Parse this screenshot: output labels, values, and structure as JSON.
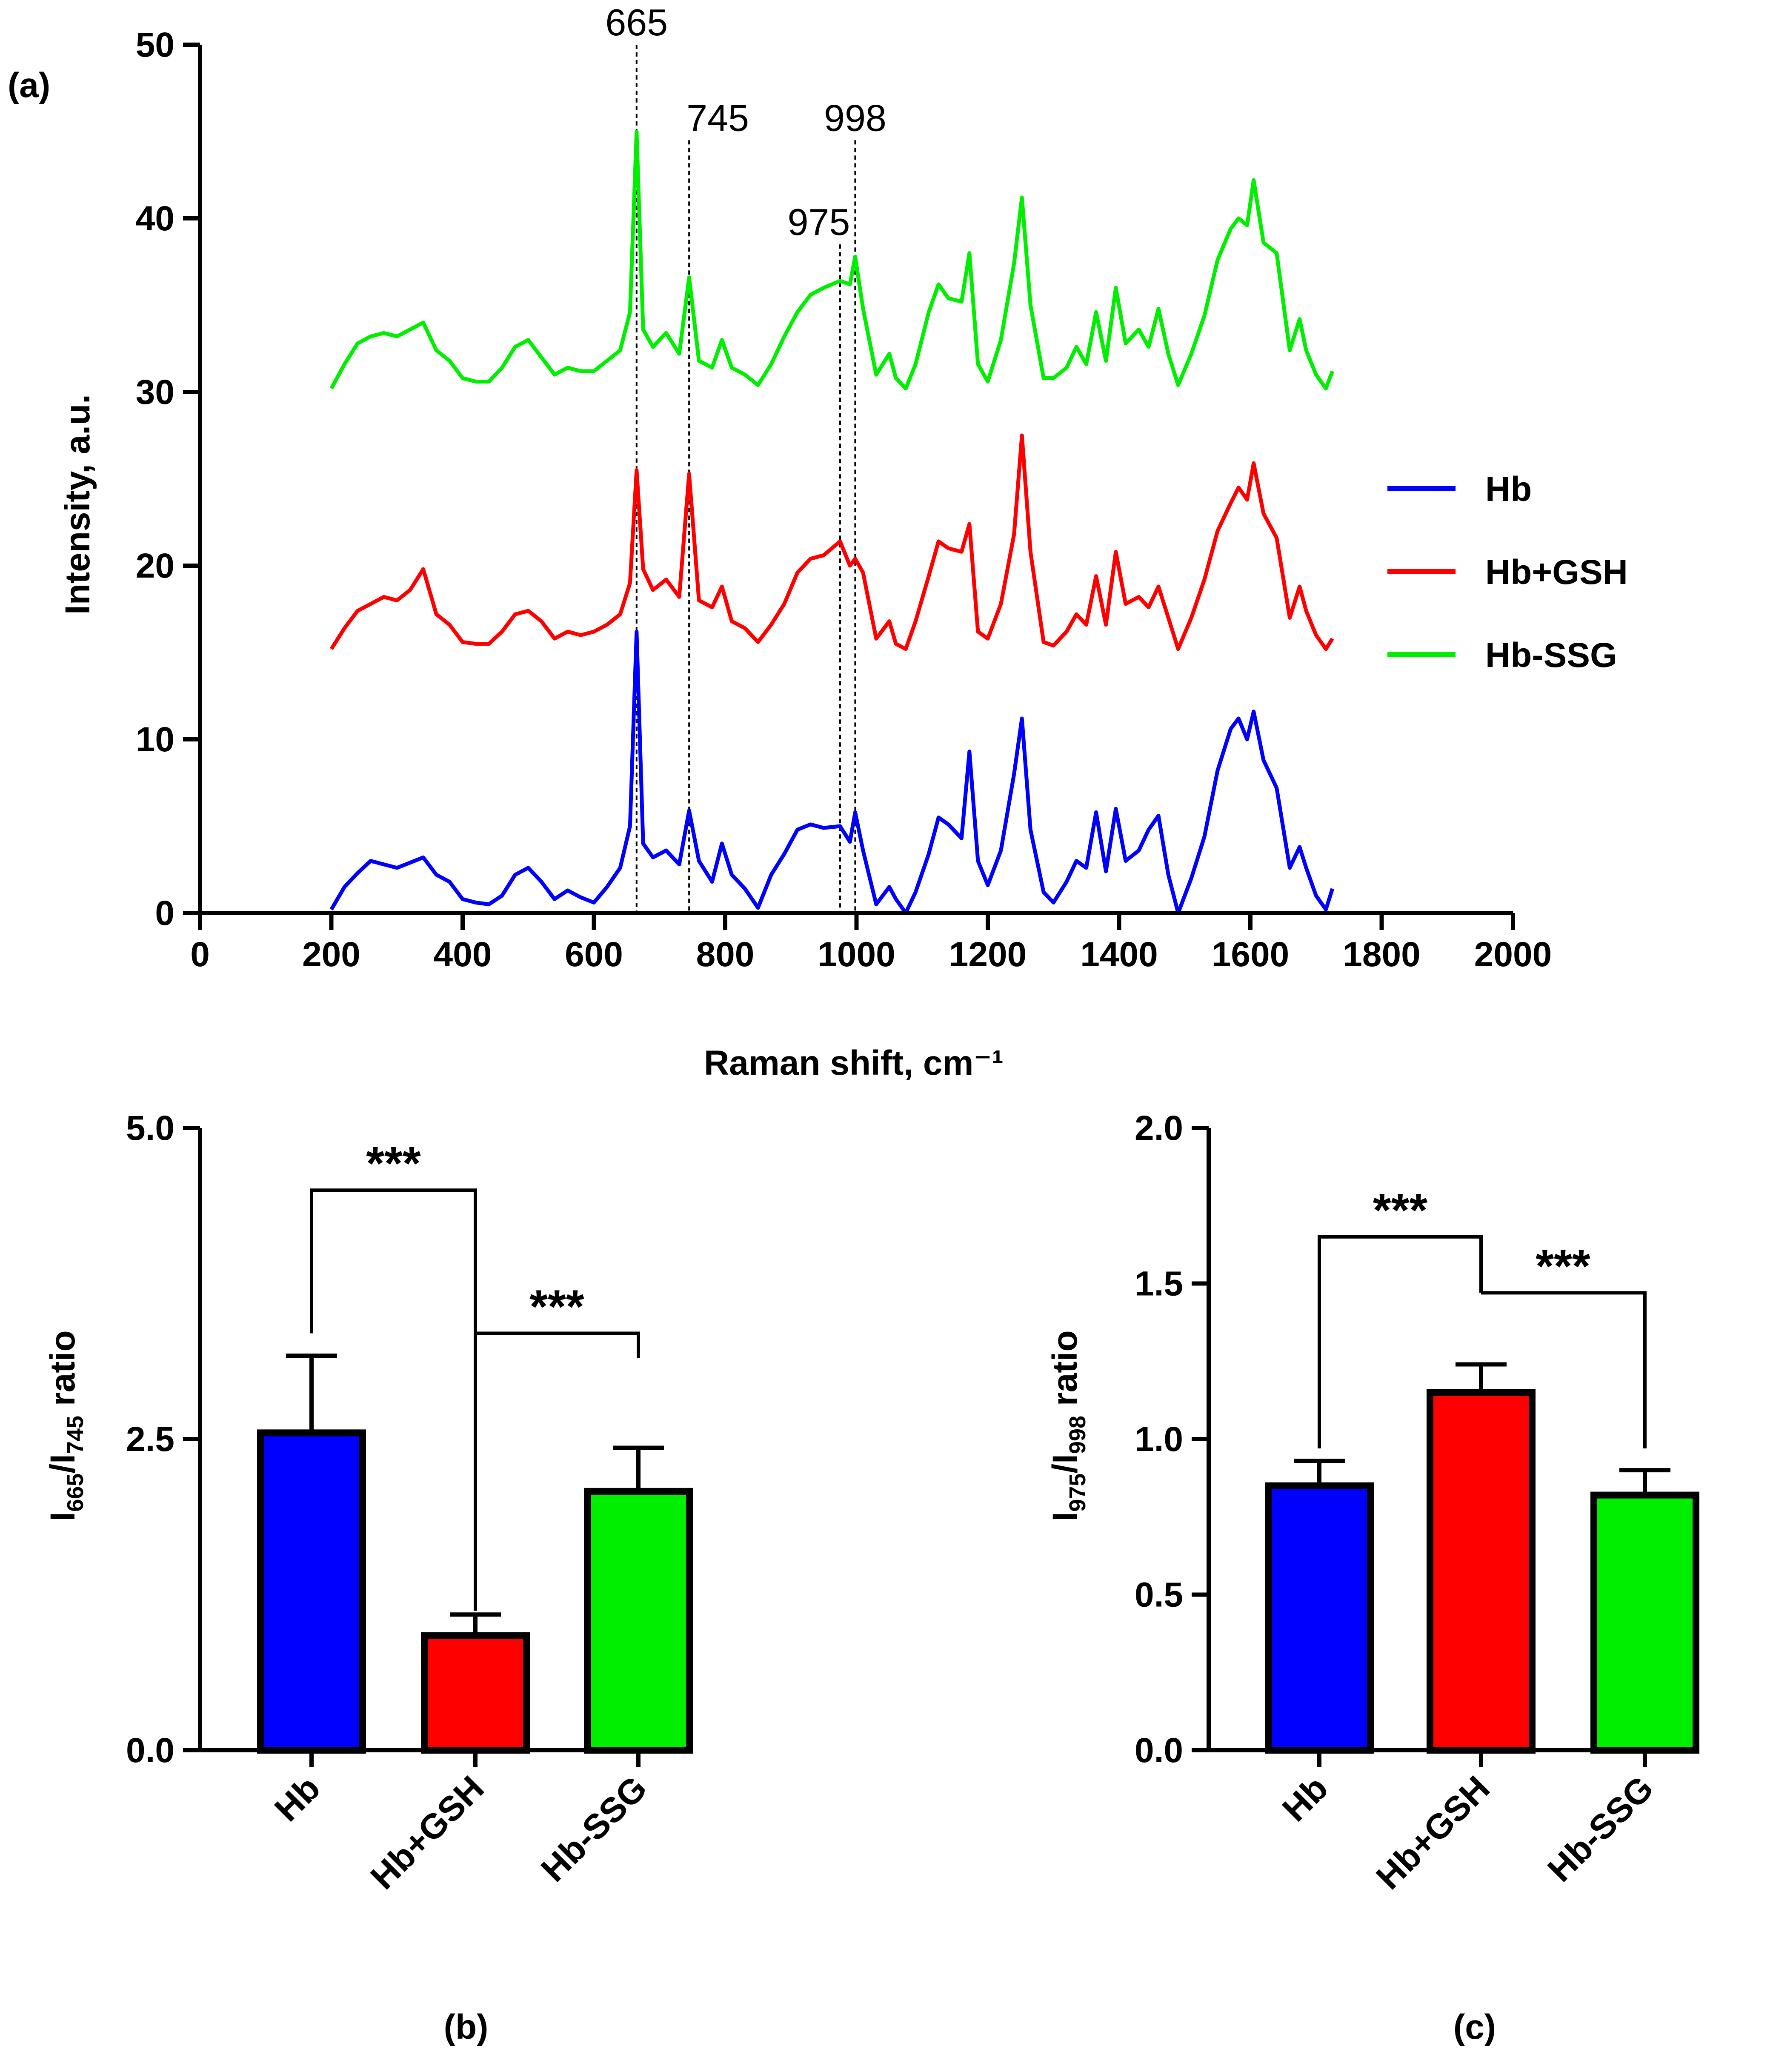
{
  "panels": {
    "a": "(a)",
    "b": "(b)",
    "c": "(c)"
  },
  "chart_data": [
    {
      "id": "a",
      "type": "line",
      "title": "",
      "xlabel": "Raman shift, cm⁻¹",
      "ylabel": "Intensity, a.u.",
      "xlim": [
        0,
        2000
      ],
      "ylim": [
        0,
        50
      ],
      "xticks": [
        0,
        200,
        400,
        600,
        800,
        1000,
        1200,
        1400,
        1600,
        1800,
        2000
      ],
      "yticks": [
        0,
        10,
        20,
        30,
        40,
        50
      ],
      "legend": "right",
      "reference_lines": [
        {
          "x": 665,
          "label": "665",
          "top": 50
        },
        {
          "x": 745,
          "label": "745",
          "top": 44.5
        },
        {
          "x": 975,
          "label": "975",
          "top": 38.5
        },
        {
          "x": 998,
          "label": "998",
          "top": 44.5
        }
      ],
      "series": [
        {
          "name": "Hb",
          "color": "#0000ff",
          "x": [
            200,
            220,
            240,
            260,
            280,
            300,
            320,
            340,
            360,
            380,
            400,
            420,
            440,
            460,
            480,
            500,
            520,
            540,
            560,
            580,
            600,
            620,
            640,
            655,
            665,
            675,
            690,
            710,
            730,
            745,
            760,
            780,
            795,
            810,
            830,
            850,
            870,
            890,
            910,
            930,
            950,
            975,
            990,
            998,
            1010,
            1030,
            1050,
            1060,
            1075,
            1090,
            1110,
            1125,
            1140,
            1160,
            1172,
            1185,
            1200,
            1220,
            1240,
            1252,
            1265,
            1285,
            1300,
            1320,
            1335,
            1350,
            1365,
            1380,
            1395,
            1410,
            1430,
            1445,
            1460,
            1475,
            1490,
            1510,
            1530,
            1550,
            1570,
            1582,
            1595,
            1605,
            1620,
            1640,
            1660,
            1675,
            1685,
            1700,
            1715,
            1725
          ],
          "y": [
            0.2,
            1.5,
            2.3,
            3.0,
            2.8,
            2.6,
            2.9,
            3.2,
            2.2,
            1.8,
            0.8,
            0.6,
            0.5,
            1.0,
            2.2,
            2.6,
            1.8,
            0.8,
            1.3,
            0.9,
            0.6,
            1.5,
            2.6,
            5.0,
            16.2,
            4.0,
            3.2,
            3.6,
            2.8,
            5.9,
            3.0,
            1.8,
            4.0,
            2.2,
            1.4,
            0.3,
            2.2,
            3.4,
            4.8,
            5.1,
            4.9,
            5.0,
            4.1,
            5.8,
            3.6,
            0.5,
            1.5,
            0.8,
            0.0,
            1.2,
            3.4,
            5.5,
            5.1,
            4.3,
            9.3,
            3.0,
            1.6,
            3.6,
            8.0,
            11.2,
            4.8,
            1.2,
            0.6,
            1.8,
            3.0,
            2.6,
            5.8,
            2.4,
            6.0,
            3.0,
            3.6,
            4.8,
            5.6,
            2.2,
            0.0,
            2.0,
            4.4,
            8.2,
            10.6,
            11.2,
            10.0,
            11.6,
            8.8,
            7.2,
            2.6,
            3.8,
            2.6,
            1.0,
            0.2,
            1.4
          ]
        },
        {
          "name": "Hb+GSH",
          "color": "#ff0000",
          "x": [
            200,
            220,
            240,
            260,
            280,
            300,
            320,
            340,
            360,
            380,
            400,
            420,
            440,
            460,
            480,
            500,
            520,
            540,
            560,
            580,
            600,
            620,
            640,
            655,
            665,
            675,
            690,
            710,
            730,
            745,
            760,
            780,
            795,
            810,
            830,
            850,
            870,
            890,
            910,
            930,
            950,
            975,
            990,
            998,
            1010,
            1030,
            1050,
            1060,
            1075,
            1090,
            1110,
            1125,
            1140,
            1160,
            1172,
            1185,
            1200,
            1220,
            1240,
            1252,
            1265,
            1285,
            1300,
            1320,
            1335,
            1350,
            1365,
            1380,
            1395,
            1410,
            1430,
            1445,
            1460,
            1475,
            1490,
            1510,
            1530,
            1550,
            1570,
            1582,
            1595,
            1605,
            1620,
            1640,
            1660,
            1675,
            1685,
            1700,
            1715,
            1725
          ],
          "y": [
            15.2,
            16.4,
            17.4,
            17.8,
            18.2,
            18.0,
            18.6,
            19.8,
            17.2,
            16.6,
            15.6,
            15.5,
            15.5,
            16.2,
            17.2,
            17.4,
            16.8,
            15.8,
            16.2,
            16.0,
            16.2,
            16.6,
            17.2,
            19.0,
            25.5,
            19.8,
            18.6,
            19.2,
            18.2,
            25.3,
            18.0,
            17.6,
            18.8,
            16.8,
            16.4,
            15.6,
            16.6,
            17.8,
            19.6,
            20.4,
            20.6,
            21.4,
            20.0,
            20.4,
            19.6,
            15.8,
            16.8,
            15.5,
            15.2,
            16.8,
            19.4,
            21.4,
            21.0,
            20.8,
            22.4,
            16.2,
            15.8,
            17.8,
            21.8,
            27.5,
            20.8,
            15.6,
            15.4,
            16.2,
            17.2,
            16.6,
            19.4,
            16.6,
            20.8,
            17.8,
            18.2,
            17.6,
            18.8,
            17.0,
            15.2,
            17.0,
            19.2,
            22.0,
            23.6,
            24.5,
            23.8,
            25.9,
            23.0,
            21.6,
            17.0,
            18.8,
            17.4,
            16.0,
            15.2,
            15.8
          ]
        },
        {
          "name": "Hb-SSG",
          "color": "#00ee00",
          "x": [
            200,
            220,
            240,
            260,
            280,
            300,
            320,
            340,
            360,
            380,
            400,
            420,
            440,
            460,
            480,
            500,
            520,
            540,
            560,
            580,
            600,
            620,
            640,
            655,
            665,
            675,
            690,
            710,
            730,
            745,
            760,
            780,
            795,
            810,
            830,
            850,
            870,
            890,
            910,
            930,
            950,
            975,
            990,
            998,
            1010,
            1030,
            1050,
            1060,
            1075,
            1090,
            1110,
            1125,
            1140,
            1160,
            1172,
            1185,
            1200,
            1220,
            1240,
            1252,
            1265,
            1285,
            1300,
            1320,
            1335,
            1350,
            1365,
            1380,
            1395,
            1410,
            1430,
            1445,
            1460,
            1475,
            1490,
            1510,
            1530,
            1550,
            1570,
            1582,
            1595,
            1605,
            1620,
            1640,
            1660,
            1675,
            1685,
            1700,
            1715,
            1725
          ],
          "y": [
            30.2,
            31.6,
            32.8,
            33.2,
            33.4,
            33.2,
            33.6,
            34.0,
            32.4,
            31.8,
            30.8,
            30.6,
            30.6,
            31.4,
            32.6,
            33.0,
            32.0,
            31.0,
            31.4,
            31.2,
            31.2,
            31.8,
            32.4,
            34.6,
            45.0,
            33.6,
            32.6,
            33.4,
            32.2,
            36.6,
            31.8,
            31.4,
            33.0,
            31.4,
            31.0,
            30.4,
            31.6,
            33.2,
            34.6,
            35.6,
            36.0,
            36.4,
            36.2,
            37.8,
            34.8,
            31.0,
            32.2,
            30.8,
            30.2,
            31.6,
            34.6,
            36.2,
            35.4,
            35.2,
            38.0,
            31.6,
            30.6,
            33.0,
            37.4,
            41.2,
            35.0,
            30.8,
            30.8,
            31.4,
            32.6,
            31.6,
            34.6,
            31.8,
            36.0,
            32.8,
            33.6,
            32.6,
            34.8,
            32.2,
            30.4,
            32.2,
            34.4,
            37.6,
            39.4,
            40.0,
            39.6,
            42.2,
            38.6,
            38.0,
            32.4,
            34.2,
            32.4,
            31.0,
            30.2,
            31.2
          ]
        }
      ]
    },
    {
      "id": "b",
      "type": "bar",
      "title": "",
      "categories": [
        "Hb",
        "Hb+GSH",
        "Hb-SSG"
      ],
      "values": [
        2.55,
        0.92,
        2.08
      ],
      "errors": [
        0.62,
        0.17,
        0.35
      ],
      "colors": [
        "#0000ff",
        "#ff0000",
        "#00ee00"
      ],
      "xlabel": "",
      "ylabel_main": "I",
      "ylabel_sub1": "665",
      "ylabel_sub2": "745",
      "ylabel_rest": " ratio",
      "ylim": [
        0,
        5
      ],
      "yticks": [
        "0.0",
        "2.5",
        "5.0"
      ],
      "significance": [
        {
          "from": 0,
          "to": 1,
          "label": "***",
          "level": 4.5,
          "left_drop": 3.35,
          "right_drop": 1.12
        },
        {
          "from": 1,
          "to": 2,
          "label": "***",
          "level": 3.35,
          "left_drop": 1.12,
          "right_drop": 3.15
        }
      ]
    },
    {
      "id": "c",
      "type": "bar",
      "title": "",
      "categories": [
        "Hb",
        "Hb+GSH",
        "Hb-SSG"
      ],
      "values": [
        0.85,
        1.15,
        0.82
      ],
      "errors": [
        0.08,
        0.09,
        0.08
      ],
      "colors": [
        "#0000ff",
        "#ff0000",
        "#00ee00"
      ],
      "xlabel": "",
      "ylabel_main": "I",
      "ylabel_sub1": "975",
      "ylabel_sub2": "998",
      "ylabel_rest": " ratio",
      "ylim": [
        0,
        2
      ],
      "yticks": [
        "0.0",
        "0.5",
        "1.0",
        "1.5",
        "2.0"
      ],
      "significance": [
        {
          "from": 0,
          "to": 1,
          "label": "***",
          "level": 1.65,
          "left_drop": 0.97,
          "right_drop": 1.47
        },
        {
          "from": 1,
          "to": 2,
          "label": "***",
          "level": 1.47,
          "left_drop": 1.47,
          "right_drop": 0.97
        }
      ]
    }
  ]
}
